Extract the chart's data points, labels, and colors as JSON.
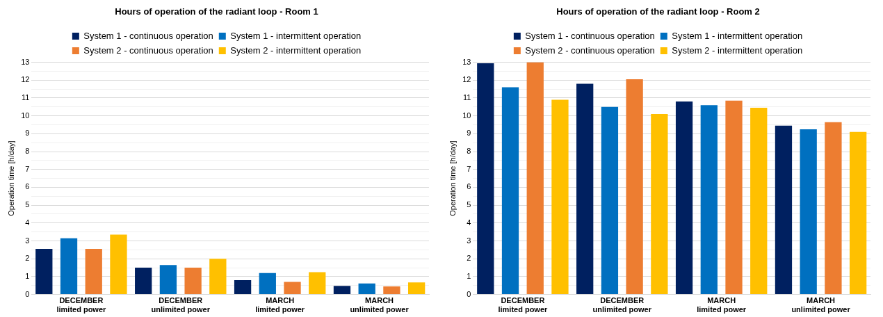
{
  "chart_data": [
    {
      "type": "bar",
      "title": "Hours of operation of the radiant loop - Room 1",
      "ylabel": "Operation time [h/day]",
      "categories": [
        "DECEMBER\nlimited power",
        "DECEMBER\nunlimited power",
        "MARCH\nlimited power",
        "MARCH\nunlimited power"
      ],
      "series": [
        {
          "name": "System 1 - continuous operation",
          "color": "#002060",
          "values": [
            2.55,
            1.5,
            0.8,
            0.48
          ]
        },
        {
          "name": "System 1 - intermittent operation",
          "color": "#0070c0",
          "values": [
            3.15,
            1.65,
            1.2,
            0.62
          ]
        },
        {
          "name": "System 2 - continuous operation",
          "color": "#ed7d31",
          "values": [
            2.55,
            1.5,
            0.7,
            0.45
          ]
        },
        {
          "name": "System 2 - intermittent operation",
          "color": "#ffc000",
          "values": [
            3.35,
            2.0,
            1.25,
            0.68
          ]
        }
      ],
      "ylim": [
        0,
        13
      ],
      "yticks": [
        0,
        {
          "value": 0.5,
          "label": null
        },
        1,
        {
          "value": 1.5,
          "label": null
        },
        2,
        {
          "value": 2.5,
          "label": null
        },
        3,
        {
          "value": 3.5,
          "label": null
        },
        4,
        {
          "value": 4.5,
          "label": null
        },
        5,
        {
          "value": 5.5,
          "label": null
        },
        6,
        {
          "value": 6.5,
          "label": null
        },
        7,
        {
          "value": 7.5,
          "label": null
        },
        8,
        {
          "value": 8.5,
          "label": null
        },
        9,
        {
          "value": 9.5,
          "label": null
        },
        10,
        {
          "value": 10.5,
          "label": null
        },
        11,
        {
          "value": 11.5,
          "label": null
        },
        12,
        {
          "value": 12.5,
          "label": null
        },
        13
      ],
      "grid": "y",
      "legend": "top"
    },
    {
      "type": "bar",
      "title": "Hours of operation of the radiant loop - Room 2",
      "ylabel": "Operation time [h/day]",
      "categories": [
        "DECEMBER\nlimited power",
        "DECEMBER\nunlimited power",
        "MARCH\nlimited power",
        "MARCH\nunlimited power"
      ],
      "series": [
        {
          "name": "System 1 - continuous operation",
          "color": "#002060",
          "values": [
            12.95,
            11.8,
            10.8,
            9.45
          ]
        },
        {
          "name": "System 1 - intermittent operation",
          "color": "#0070c0",
          "values": [
            11.6,
            10.5,
            10.6,
            9.25
          ]
        },
        {
          "name": "System 2 - continuous operation",
          "color": "#ed7d31",
          "values": [
            13.0,
            12.05,
            10.85,
            9.65
          ]
        },
        {
          "name": "System 2 - intermittent operation",
          "color": "#ffc000",
          "values": [
            10.9,
            10.1,
            10.45,
            9.1
          ]
        }
      ],
      "ylim": [
        0,
        13
      ],
      "yticks": [
        0,
        {
          "value": 0.5,
          "label": null
        },
        1,
        {
          "value": 1.5,
          "label": null
        },
        2,
        {
          "value": 2.5,
          "label": null
        },
        3,
        {
          "value": 3.5,
          "label": null
        },
        4,
        {
          "value": 4.5,
          "label": null
        },
        5,
        {
          "value": 5.5,
          "label": null
        },
        6,
        {
          "value": 6.5,
          "label": null
        },
        7,
        {
          "value": 7.5,
          "label": null
        },
        8,
        {
          "value": 8.5,
          "label": null
        },
        9,
        {
          "value": 9.5,
          "label": null
        },
        10,
        {
          "value": 10.5,
          "label": null
        },
        11,
        {
          "value": 11.5,
          "label": null
        },
        12,
        {
          "value": 12.5,
          "label": null
        },
        13
      ],
      "grid": "y",
      "legend": "top"
    }
  ]
}
